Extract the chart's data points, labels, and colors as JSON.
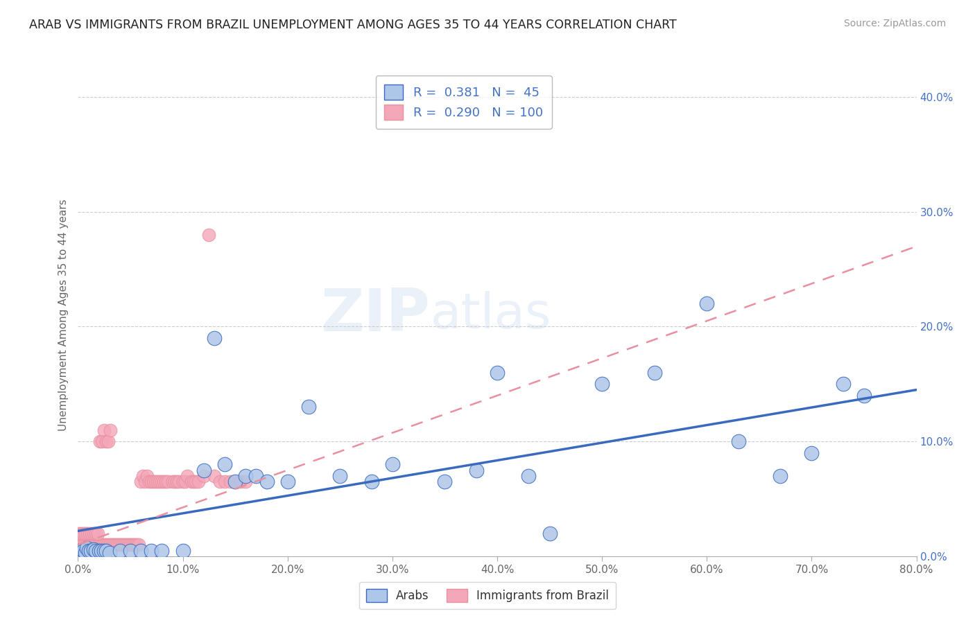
{
  "title": "ARAB VS IMMIGRANTS FROM BRAZIL UNEMPLOYMENT AMONG AGES 35 TO 44 YEARS CORRELATION CHART",
  "source": "Source: ZipAtlas.com",
  "ylabel": "Unemployment Among Ages 35 to 44 years",
  "xlim": [
    0.0,
    0.8
  ],
  "ylim": [
    0.0,
    0.42
  ],
  "xticklabels": [
    "0.0%",
    "10.0%",
    "20.0%",
    "30.0%",
    "40.0%",
    "50.0%",
    "60.0%",
    "70.0%",
    "80.0%"
  ],
  "yticks_right": [
    0.0,
    0.1,
    0.2,
    0.3,
    0.4
  ],
  "yticklabels_right": [
    "0.0%",
    "10.0%",
    "20.0%",
    "30.0%",
    "40.0%"
  ],
  "legend_r_arab": "0.381",
  "legend_n_arab": "45",
  "legend_r_brazil": "0.290",
  "legend_n_brazil": "100",
  "arab_color": "#aec6e8",
  "brazil_color": "#f4a7b9",
  "arab_line_color": "#3a6abf",
  "brazil_line_color": "#e8909f",
  "watermark_zip": "ZIP",
  "watermark_atlas": "atlas",
  "background_color": "#ffffff",
  "arab_x": [
    0.0,
    0.003,
    0.005,
    0.007,
    0.008,
    0.01,
    0.012,
    0.015,
    0.017,
    0.02,
    0.022,
    0.025,
    0.027,
    0.03,
    0.04,
    0.05,
    0.06,
    0.07,
    0.08,
    0.1,
    0.12,
    0.13,
    0.14,
    0.15,
    0.16,
    0.17,
    0.18,
    0.2,
    0.22,
    0.25,
    0.28,
    0.3,
    0.35,
    0.38,
    0.4,
    0.43,
    0.45,
    0.5,
    0.55,
    0.6,
    0.63,
    0.67,
    0.7,
    0.73,
    0.75
  ],
  "arab_y": [
    0.005,
    0.005,
    0.005,
    0.003,
    0.007,
    0.005,
    0.005,
    0.006,
    0.005,
    0.005,
    0.005,
    0.005,
    0.005,
    0.003,
    0.005,
    0.005,
    0.005,
    0.005,
    0.005,
    0.005,
    0.075,
    0.19,
    0.08,
    0.065,
    0.07,
    0.07,
    0.065,
    0.065,
    0.13,
    0.07,
    0.065,
    0.08,
    0.065,
    0.075,
    0.16,
    0.07,
    0.02,
    0.15,
    0.16,
    0.22,
    0.1,
    0.07,
    0.09,
    0.15,
    0.14
  ],
  "brazil_x": [
    0.0,
    0.001,
    0.002,
    0.003,
    0.004,
    0.005,
    0.006,
    0.007,
    0.008,
    0.009,
    0.01,
    0.011,
    0.012,
    0.013,
    0.014,
    0.015,
    0.016,
    0.017,
    0.018,
    0.019,
    0.0,
    0.002,
    0.004,
    0.006,
    0.008,
    0.01,
    0.012,
    0.014,
    0.016,
    0.018,
    0.02,
    0.022,
    0.024,
    0.026,
    0.028,
    0.03,
    0.032,
    0.034,
    0.036,
    0.038,
    0.04,
    0.042,
    0.044,
    0.046,
    0.048,
    0.05,
    0.052,
    0.054,
    0.056,
    0.058,
    0.06,
    0.062,
    0.064,
    0.066,
    0.068,
    0.07,
    0.072,
    0.074,
    0.076,
    0.078,
    0.08,
    0.082,
    0.084,
    0.086,
    0.09,
    0.092,
    0.094,
    0.096,
    0.1,
    0.102,
    0.104,
    0.108,
    0.11,
    0.112,
    0.115,
    0.12,
    0.125,
    0.13,
    0.135,
    0.14,
    0.145,
    0.15,
    0.155,
    0.16,
    0.001,
    0.003,
    0.005,
    0.007,
    0.009,
    0.011,
    0.013,
    0.015,
    0.017,
    0.019,
    0.021,
    0.023,
    0.025,
    0.027,
    0.029,
    0.031
  ],
  "brazil_y": [
    0.003,
    0.003,
    0.004,
    0.003,
    0.004,
    0.003,
    0.004,
    0.003,
    0.004,
    0.003,
    0.004,
    0.004,
    0.003,
    0.005,
    0.004,
    0.004,
    0.003,
    0.005,
    0.004,
    0.003,
    0.01,
    0.01,
    0.01,
    0.01,
    0.01,
    0.01,
    0.01,
    0.01,
    0.01,
    0.01,
    0.01,
    0.01,
    0.01,
    0.01,
    0.01,
    0.01,
    0.01,
    0.01,
    0.01,
    0.01,
    0.01,
    0.01,
    0.01,
    0.01,
    0.01,
    0.01,
    0.01,
    0.01,
    0.01,
    0.01,
    0.065,
    0.07,
    0.065,
    0.07,
    0.065,
    0.065,
    0.065,
    0.065,
    0.065,
    0.065,
    0.065,
    0.065,
    0.065,
    0.065,
    0.065,
    0.065,
    0.065,
    0.065,
    0.065,
    0.065,
    0.07,
    0.065,
    0.065,
    0.065,
    0.065,
    0.07,
    0.28,
    0.07,
    0.065,
    0.065,
    0.065,
    0.065,
    0.065,
    0.065,
    0.02,
    0.02,
    0.02,
    0.02,
    0.02,
    0.02,
    0.02,
    0.02,
    0.02,
    0.02,
    0.1,
    0.1,
    0.11,
    0.1,
    0.1,
    0.11
  ],
  "arab_line_x": [
    0.0,
    0.8
  ],
  "arab_line_y": [
    0.022,
    0.145
  ],
  "brazil_line_x": [
    0.0,
    0.8
  ],
  "brazil_line_y": [
    0.01,
    0.27
  ]
}
